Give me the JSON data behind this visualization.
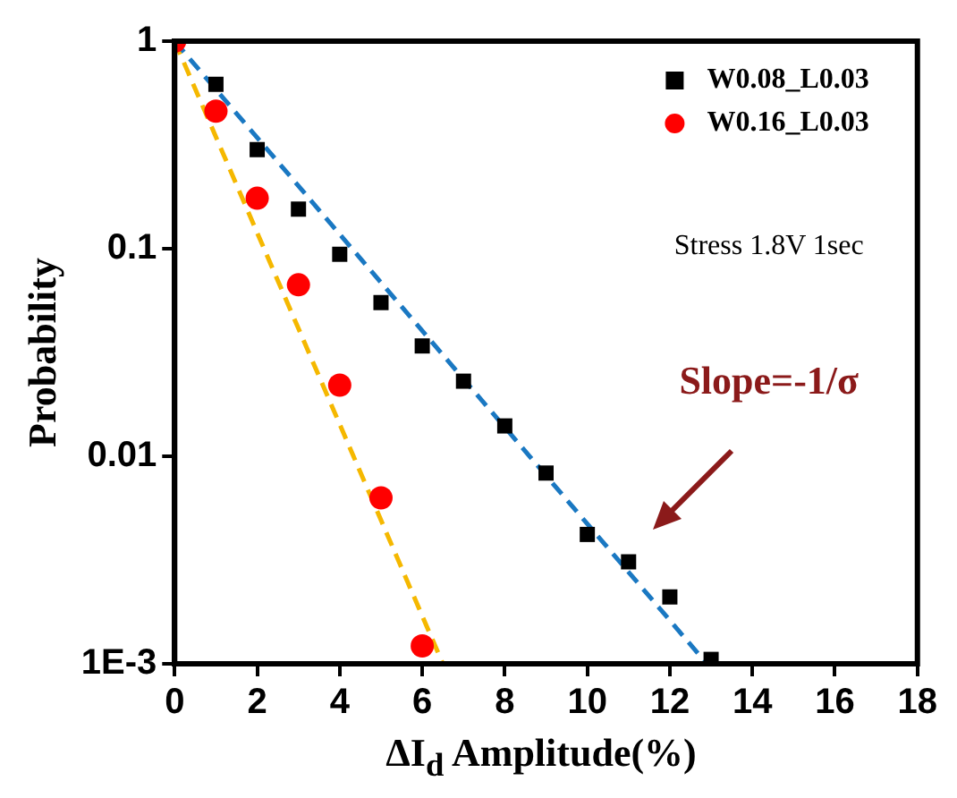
{
  "chart_data": {
    "type": "scatter",
    "xlabel": "ΔI$_{d}$ Amplitude(%)",
    "ylabel": "Probability",
    "series": [
      {
        "name": "W0.08_L0.03",
        "color": "#000000",
        "marker": "square",
        "x": [
          1,
          2,
          3,
          4,
          5,
          6,
          7,
          8,
          9,
          10,
          11,
          12,
          13
        ],
        "values": [
          0.62,
          0.3,
          0.155,
          0.094,
          0.055,
          0.034,
          0.023,
          0.014,
          0.0083,
          0.0042,
          0.0031,
          0.0021,
          0.00105
        ]
      },
      {
        "name": "W0.16_L0.03",
        "color": "#ff0000",
        "marker": "circle",
        "x": [
          0,
          1,
          2,
          3,
          4,
          5,
          6
        ],
        "values": [
          1,
          0.46,
          0.175,
          0.067,
          0.022,
          0.0063,
          0.00122
        ]
      },
      {
        "type": "line",
        "color": "#1a78c2",
        "line_style": "dashed",
        "marker": "none",
        "x": [
          0,
          12.9
        ],
        "values": [
          1,
          0.001
        ]
      },
      {
        "type": "line",
        "color": "#f5b800",
        "line_style": "dashed",
        "marker": "none",
        "x": [
          0,
          6.5
        ],
        "values": [
          1,
          0.001
        ]
      }
    ],
    "xlim": [
      0,
      18
    ],
    "xticks": [
      0,
      2,
      4,
      6,
      8,
      10,
      12,
      14,
      16,
      18
    ],
    "ylim": [
      0.001,
      1
    ],
    "yticks": [
      {
        "value": 0.001,
        "label": "1E-3"
      },
      0.01,
      0.1,
      1
    ],
    "log": "y",
    "grid": false,
    "legend": "top right",
    "annotations": [
      "Stress 1.8V 1sec",
      "Slope=-1/σ"
    ]
  }
}
